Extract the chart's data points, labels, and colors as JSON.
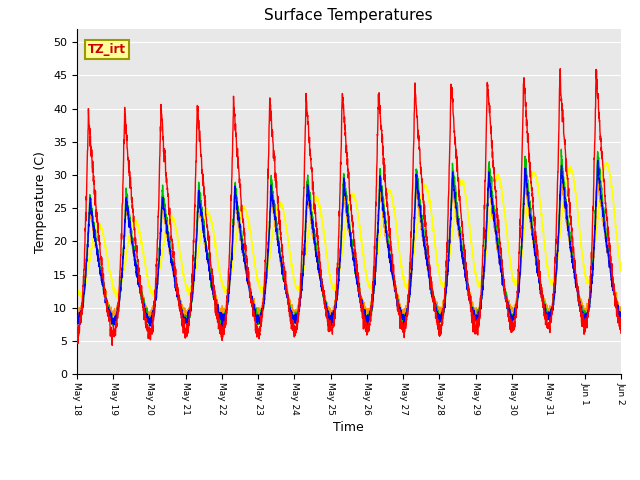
{
  "title": "Surface Temperatures",
  "xlabel": "Time",
  "ylabel": "Temperature (C)",
  "ylim": [
    0,
    52
  ],
  "yticks": [
    0,
    5,
    10,
    15,
    20,
    25,
    30,
    35,
    40,
    45,
    50
  ],
  "series_colors": {
    "IRT Ground": "#ff0000",
    "IRT Canopy": "#0000ff",
    "Floor Tair": "#00bb00",
    "Tower TAir": "#ff9900",
    "TsoilD_2cm": "#ffff00"
  },
  "annotation_text": "TZ_irt",
  "annotation_color": "#cc0000",
  "annotation_bg": "#ffff99",
  "annotation_border": "#999900",
  "plot_bg": "#e8e8e8",
  "n_points": 3000,
  "days": 15
}
